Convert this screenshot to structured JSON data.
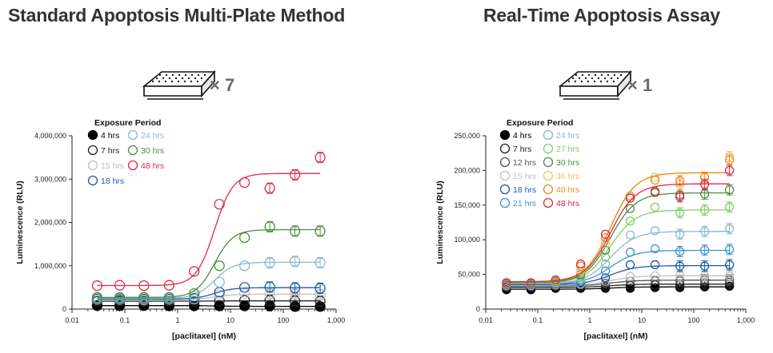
{
  "titles": {
    "left": "Standard Apoptosis Multi-Plate Method",
    "right": "Real-Time Apoptosis Assay"
  },
  "plates": {
    "left_count": "× 7",
    "right_count": "× 1",
    "icon": "microplate-icon"
  },
  "chart_data": [
    {
      "type": "scatter",
      "title": "",
      "xlabel": "[paclitaxel] (nM)",
      "ylabel": "Luminescence (RLU)",
      "xscale": "log",
      "xlim": [
        0.01,
        1000
      ],
      "ylim": [
        0,
        4000000
      ],
      "xticks": [
        "0.01",
        "0.1",
        "1",
        "10",
        "100",
        "1,000"
      ],
      "yticks": [
        "0",
        "1,000,000",
        "2,000,000",
        "3,000,000",
        "4,000,000"
      ],
      "grid": false,
      "legend_title": "Exposure Period",
      "legend_position": "top-left",
      "x": [
        0.03,
        0.08,
        0.23,
        0.69,
        2.06,
        6.17,
        18.5,
        55.6,
        166.7,
        500
      ],
      "series": [
        {
          "name": "4 hrs",
          "color": "#000000",
          "filled": true,
          "values": [
            80000,
            80000,
            80000,
            75000,
            75000,
            75000,
            75000,
            70000,
            60000,
            60000
          ]
        },
        {
          "name": "7 hrs",
          "color": "#222222",
          "filled": false,
          "values": [
            180000,
            190000,
            180000,
            180000,
            170000,
            190000,
            200000,
            200000,
            190000,
            180000
          ]
        },
        {
          "name": "15 hrs",
          "color": "#bfbfbf",
          "filled": false,
          "values": [
            220000,
            220000,
            210000,
            220000,
            230000,
            330000,
            360000,
            350000,
            350000,
            330000
          ]
        },
        {
          "name": "18 hrs",
          "color": "#1f5aa6",
          "filled": false,
          "values": [
            230000,
            230000,
            230000,
            230000,
            250000,
            390000,
            500000,
            510000,
            490000,
            480000
          ]
        },
        {
          "name": "24 hrs",
          "color": "#8ab8c9",
          "filled": false,
          "values": [
            250000,
            250000,
            250000,
            250000,
            300000,
            620000,
            1000000,
            1070000,
            1100000,
            1070000
          ]
        },
        {
          "name": "30 hrs",
          "color": "#4a8f3f",
          "filled": false,
          "values": [
            270000,
            270000,
            270000,
            270000,
            360000,
            1000000,
            1650000,
            1900000,
            1800000,
            1800000
          ]
        },
        {
          "name": "48 hrs",
          "color": "#dd2b45",
          "filled": false,
          "values": [
            540000,
            550000,
            540000,
            550000,
            870000,
            2420000,
            2920000,
            2790000,
            3100000,
            3500000
          ]
        }
      ]
    },
    {
      "type": "scatter",
      "title": "",
      "xlabel": "[paclitaxel] (nM)",
      "ylabel": "Luminescence (RLU)",
      "xscale": "log",
      "xlim": [
        0.01,
        1000
      ],
      "ylim": [
        0,
        250000
      ],
      "xticks": [
        "0.01",
        "0.1",
        "1",
        "10",
        "100",
        "1,000"
      ],
      "yticks": [
        "0",
        "50,000",
        "100,000",
        "150,000",
        "200,000",
        "250,000"
      ],
      "grid": false,
      "legend_title": "Exposure Period",
      "legend_position": "top-left",
      "x": [
        0.025,
        0.074,
        0.22,
        0.67,
        2.0,
        6.0,
        18.0,
        54.0,
        162.0,
        486.0
      ],
      "series": [
        {
          "name": "4 hrs",
          "color": "#000000",
          "filled": true,
          "values": [
            28000,
            28000,
            30000,
            30000,
            30000,
            30000,
            31000,
            31000,
            32000,
            33000
          ]
        },
        {
          "name": "7 hrs",
          "color": "#222222",
          "filled": false,
          "values": [
            31000,
            31000,
            32000,
            32000,
            33000,
            34000,
            35000,
            35000,
            36000,
            37000
          ]
        },
        {
          "name": "12 hrs",
          "color": "#555555",
          "filled": false,
          "values": [
            33000,
            33000,
            34000,
            35000,
            37000,
            40000,
            41000,
            41000,
            42000,
            42000
          ]
        },
        {
          "name": "15 hrs",
          "color": "#bfbfbf",
          "filled": false,
          "values": [
            34000,
            34000,
            35000,
            36000,
            40000,
            47000,
            48000,
            48000,
            48000,
            48000
          ]
        },
        {
          "name": "18 hrs",
          "color": "#1f5aa6",
          "filled": false,
          "values": [
            35000,
            35000,
            36000,
            38000,
            45000,
            64000,
            64000,
            62000,
            62000,
            64000
          ]
        },
        {
          "name": "21 hrs",
          "color": "#3d93d6",
          "filled": false,
          "values": [
            36000,
            36000,
            37000,
            40000,
            55000,
            82000,
            87000,
            83000,
            85000,
            86000
          ]
        },
        {
          "name": "24 hrs",
          "color": "#8ab8c9",
          "filled": false,
          "values": [
            36000,
            36000,
            38000,
            43000,
            65000,
            107000,
            113000,
            108000,
            112000,
            116000
          ]
        },
        {
          "name": "27 hrs",
          "color": "#7fcf62",
          "filled": false,
          "values": [
            37000,
            37000,
            39000,
            46000,
            75000,
            127000,
            147000,
            139000,
            143000,
            147000
          ]
        },
        {
          "name": "30 hrs",
          "color": "#4a8f3f",
          "filled": false,
          "values": [
            37000,
            37000,
            40000,
            50000,
            85000,
            145000,
            170000,
            165000,
            166000,
            172000
          ]
        },
        {
          "name": "36 hrs",
          "color": "#f6c06a",
          "filled": false,
          "values": [
            38000,
            38000,
            41000,
            55000,
            95000,
            160000,
            190000,
            180000,
            190000,
            220000
          ]
        },
        {
          "name": "40 hrs",
          "color": "#f08a1c",
          "filled": false,
          "values": [
            38000,
            38000,
            42000,
            62000,
            103000,
            163000,
            186000,
            185000,
            190000,
            215000
          ]
        },
        {
          "name": "48 hrs",
          "color": "#dd2b45",
          "filled": false,
          "values": [
            38000,
            38000,
            42000,
            65000,
            108000,
            160000,
            168000,
            162000,
            180000,
            200000
          ]
        }
      ]
    }
  ]
}
